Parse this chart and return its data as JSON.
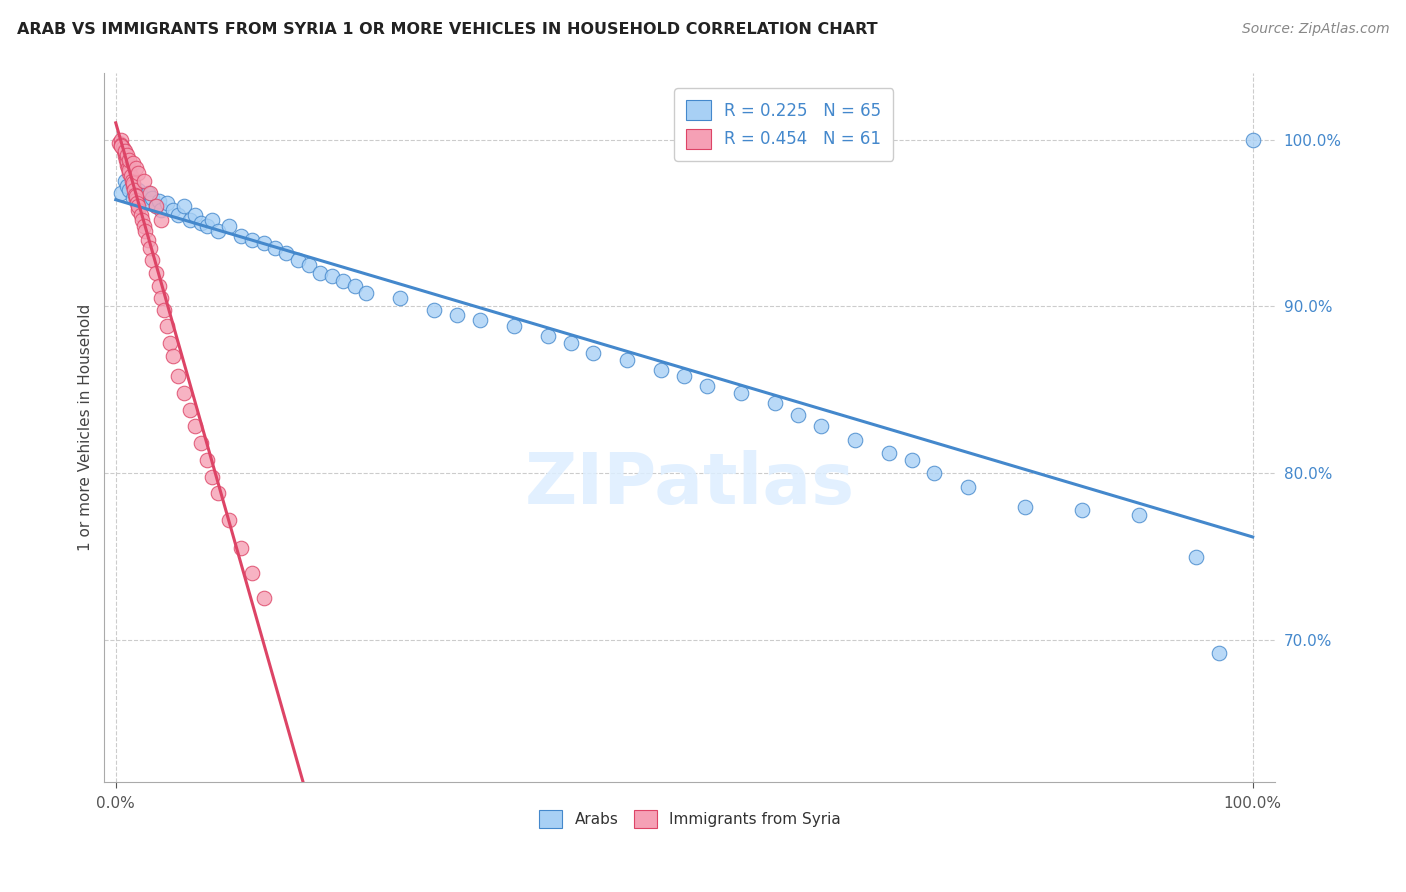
{
  "title": "ARAB VS IMMIGRANTS FROM SYRIA 1 OR MORE VEHICLES IN HOUSEHOLD CORRELATION CHART",
  "source": "Source: ZipAtlas.com",
  "ylabel": "1 or more Vehicles in Household",
  "ytick_values": [
    0.7,
    0.8,
    0.9,
    1.0
  ],
  "legend_arab_r": "R = 0.225",
  "legend_arab_n": "N = 65",
  "legend_syria_r": "R = 0.454",
  "legend_syria_n": "N = 61",
  "arab_color": "#a8d0f5",
  "syria_color": "#f5a0b5",
  "trendline_arab_color": "#4488cc",
  "trendline_syria_color": "#dd4466",
  "background_color": "#ffffff",
  "grid_color": "#cccccc",
  "legend_label_arab": "Arabs",
  "legend_label_syria": "Immigrants from Syria",
  "arab_x": [
    0.005,
    0.008,
    0.01,
    0.012,
    0.015,
    0.018,
    0.02,
    0.022,
    0.025,
    0.028,
    0.03,
    0.032,
    0.035,
    0.038,
    0.04,
    0.045,
    0.05,
    0.055,
    0.06,
    0.065,
    0.07,
    0.075,
    0.08,
    0.085,
    0.09,
    0.1,
    0.11,
    0.12,
    0.13,
    0.14,
    0.15,
    0.16,
    0.17,
    0.18,
    0.19,
    0.2,
    0.21,
    0.22,
    0.25,
    0.28,
    0.3,
    0.32,
    0.35,
    0.38,
    0.4,
    0.42,
    0.45,
    0.48,
    0.5,
    0.52,
    0.55,
    0.58,
    0.6,
    0.62,
    0.65,
    0.68,
    0.7,
    0.72,
    0.75,
    0.8,
    0.85,
    0.9,
    0.95,
    0.97,
    1.0
  ],
  "arab_y": [
    0.968,
    0.975,
    0.972,
    0.97,
    0.965,
    0.968,
    0.97,
    0.967,
    0.965,
    0.968,
    0.962,
    0.965,
    0.96,
    0.963,
    0.958,
    0.962,
    0.958,
    0.955,
    0.96,
    0.952,
    0.955,
    0.95,
    0.948,
    0.952,
    0.945,
    0.948,
    0.942,
    0.94,
    0.938,
    0.935,
    0.932,
    0.928,
    0.925,
    0.92,
    0.918,
    0.915,
    0.912,
    0.908,
    0.905,
    0.898,
    0.895,
    0.892,
    0.888,
    0.882,
    0.878,
    0.872,
    0.868,
    0.862,
    0.858,
    0.852,
    0.848,
    0.842,
    0.835,
    0.828,
    0.82,
    0.812,
    0.808,
    0.8,
    0.792,
    0.78,
    0.778,
    0.775,
    0.75,
    0.692,
    1.0
  ],
  "syria_x": [
    0.003,
    0.005,
    0.005,
    0.006,
    0.007,
    0.008,
    0.008,
    0.009,
    0.01,
    0.01,
    0.011,
    0.012,
    0.012,
    0.013,
    0.014,
    0.015,
    0.015,
    0.016,
    0.017,
    0.018,
    0.018,
    0.019,
    0.02,
    0.02,
    0.022,
    0.023,
    0.025,
    0.026,
    0.028,
    0.03,
    0.032,
    0.035,
    0.038,
    0.04,
    0.042,
    0.045,
    0.048,
    0.05,
    0.055,
    0.06,
    0.065,
    0.07,
    0.075,
    0.08,
    0.085,
    0.09,
    0.1,
    0.11,
    0.12,
    0.13,
    0.005,
    0.008,
    0.01,
    0.012,
    0.015,
    0.018,
    0.02,
    0.025,
    0.03,
    0.035,
    0.04
  ],
  "syria_y": [
    0.998,
    1.0,
    0.997,
    0.995,
    0.993,
    0.99,
    0.992,
    0.988,
    0.985,
    0.987,
    0.983,
    0.98,
    0.982,
    0.978,
    0.975,
    0.972,
    0.974,
    0.97,
    0.967,
    0.964,
    0.966,
    0.962,
    0.958,
    0.96,
    0.955,
    0.952,
    0.948,
    0.945,
    0.94,
    0.935,
    0.928,
    0.92,
    0.912,
    0.905,
    0.898,
    0.888,
    0.878,
    0.87,
    0.858,
    0.848,
    0.838,
    0.828,
    0.818,
    0.808,
    0.798,
    0.788,
    0.772,
    0.755,
    0.74,
    0.725,
    0.996,
    0.993,
    0.991,
    0.988,
    0.986,
    0.983,
    0.98,
    0.975,
    0.968,
    0.96,
    0.952
  ]
}
